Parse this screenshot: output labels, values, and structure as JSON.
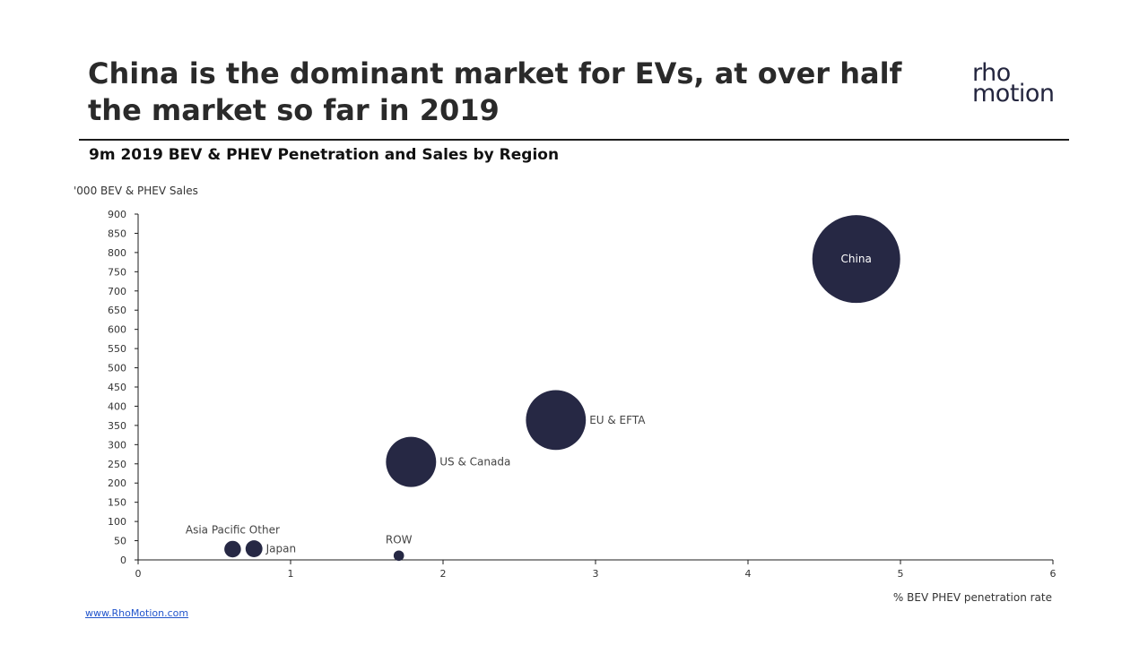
{
  "header": {
    "title": "China is the dominant market for EVs, at over half the market so far in 2019",
    "logo_line1": "rho",
    "logo_line2": "motion"
  },
  "footer": {
    "link_text": "www.RhoMotion.com"
  },
  "colors": {
    "bubble": "#262844",
    "axis": "#1c1c1c"
  },
  "chart_data": {
    "type": "scatter",
    "title": "9m 2019 BEV & PHEV Penetration and Sales by Region",
    "xlabel": "% BEV PHEV penetration rate",
    "ylabel": "'000 BEV & PHEV Sales",
    "xlim": [
      0,
      6
    ],
    "ylim": [
      0,
      900
    ],
    "xticks": [
      0,
      1,
      2,
      3,
      4,
      5,
      6
    ],
    "yticks": [
      0,
      50,
      100,
      150,
      200,
      250,
      300,
      350,
      400,
      450,
      500,
      550,
      600,
      650,
      700,
      750,
      800,
      850,
      900
    ],
    "grid": false,
    "bubbles": [
      {
        "name": "China",
        "x": 4.71,
        "y": 783,
        "size": 783,
        "label_pos": "inside"
      },
      {
        "name": "EU & EFTA",
        "x": 2.74,
        "y": 364,
        "size": 364,
        "label_pos": "right"
      },
      {
        "name": "US & Canada",
        "x": 1.79,
        "y": 255,
        "size": 255,
        "label_pos": "right"
      },
      {
        "name": "Asia Pacific Other",
        "x": 0.62,
        "y": 28,
        "size": 28,
        "label_pos": "above"
      },
      {
        "name": "Japan",
        "x": 0.76,
        "y": 29,
        "size": 29,
        "label_pos": "right"
      },
      {
        "name": "ROW",
        "x": 1.71,
        "y": 11,
        "size": 11,
        "label_pos": "above"
      }
    ]
  }
}
